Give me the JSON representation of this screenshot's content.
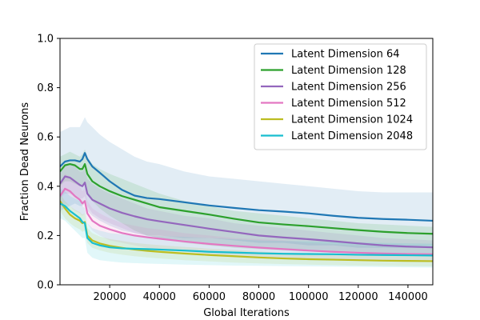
{
  "chart_data": {
    "type": "line",
    "title": "",
    "xlabel": "Global Iterations",
    "ylabel": "Fraction Dead Neurons",
    "xlim": [
      0,
      150000
    ],
    "ylim": [
      0.0,
      1.0
    ],
    "xticks": [
      20000,
      40000,
      60000,
      80000,
      100000,
      120000,
      140000
    ],
    "xtick_labels": [
      "20000",
      "40000",
      "60000",
      "80000",
      "100000",
      "120000",
      "140000"
    ],
    "yticks": [
      0.0,
      0.2,
      0.4,
      0.6,
      0.8,
      1.0
    ],
    "ytick_labels": [
      "0.0",
      "0.2",
      "0.4",
      "0.6",
      "0.8",
      "1.0"
    ],
    "grid": false,
    "legend_position": "top-right",
    "x": [
      0,
      2000,
      4000,
      6000,
      8000,
      9000,
      10000,
      11000,
      13000,
      16000,
      20000,
      25000,
      30000,
      35000,
      40000,
      50000,
      60000,
      70000,
      80000,
      90000,
      100000,
      110000,
      120000,
      130000,
      140000,
      150000
    ],
    "series": [
      {
        "name": "Latent Dimension 64",
        "color": "#1f77b4",
        "values": [
          0.48,
          0.5,
          0.505,
          0.505,
          0.5,
          0.51,
          0.535,
          0.51,
          0.48,
          0.455,
          0.42,
          0.385,
          0.362,
          0.352,
          0.348,
          0.335,
          0.322,
          0.312,
          0.303,
          0.297,
          0.29,
          0.28,
          0.272,
          0.267,
          0.264,
          0.26
        ],
        "lower": [
          0.3,
          0.31,
          0.32,
          0.33,
          0.32,
          0.32,
          0.33,
          0.3,
          0.28,
          0.26,
          0.24,
          0.22,
          0.21,
          0.2,
          0.2,
          0.19,
          0.19,
          0.18,
          0.17,
          0.17,
          0.16,
          0.16,
          0.15,
          0.15,
          0.15,
          0.15
        ],
        "upper": [
          0.62,
          0.63,
          0.64,
          0.64,
          0.64,
          0.66,
          0.68,
          0.66,
          0.64,
          0.61,
          0.58,
          0.55,
          0.52,
          0.5,
          0.49,
          0.46,
          0.44,
          0.43,
          0.42,
          0.41,
          0.4,
          0.39,
          0.38,
          0.375,
          0.375,
          0.375
        ]
      },
      {
        "name": "Latent Dimension 128",
        "color": "#2ca02c",
        "values": [
          0.46,
          0.485,
          0.49,
          0.485,
          0.47,
          0.47,
          0.49,
          0.45,
          0.42,
          0.4,
          0.38,
          0.36,
          0.345,
          0.33,
          0.315,
          0.3,
          0.285,
          0.268,
          0.253,
          0.245,
          0.238,
          0.23,
          0.222,
          0.215,
          0.21,
          0.207
        ],
        "lower": [
          0.4,
          0.42,
          0.42,
          0.41,
          0.4,
          0.4,
          0.41,
          0.37,
          0.34,
          0.31,
          0.28,
          0.25,
          0.22,
          0.2,
          0.19,
          0.17,
          0.16,
          0.15,
          0.145,
          0.14,
          0.135,
          0.13,
          0.13,
          0.125,
          0.125,
          0.125
        ],
        "upper": [
          0.52,
          0.53,
          0.54,
          0.53,
          0.52,
          0.53,
          0.55,
          0.52,
          0.49,
          0.47,
          0.45,
          0.43,
          0.41,
          0.39,
          0.37,
          0.34,
          0.32,
          0.3,
          0.29,
          0.28,
          0.27,
          0.26,
          0.25,
          0.245,
          0.24,
          0.235
        ]
      },
      {
        "name": "Latent Dimension 256",
        "color": "#9467bd",
        "values": [
          0.41,
          0.44,
          0.435,
          0.42,
          0.405,
          0.4,
          0.415,
          0.37,
          0.345,
          0.33,
          0.31,
          0.292,
          0.278,
          0.266,
          0.258,
          0.243,
          0.228,
          0.214,
          0.2,
          0.192,
          0.185,
          0.177,
          0.168,
          0.16,
          0.155,
          0.152
        ],
        "lower": [
          0.35,
          0.37,
          0.37,
          0.36,
          0.35,
          0.35,
          0.36,
          0.32,
          0.29,
          0.27,
          0.25,
          0.23,
          0.21,
          0.2,
          0.19,
          0.18,
          0.17,
          0.16,
          0.15,
          0.145,
          0.14,
          0.135,
          0.13,
          0.125,
          0.125,
          0.12
        ],
        "upper": [
          0.46,
          0.49,
          0.49,
          0.48,
          0.46,
          0.46,
          0.47,
          0.43,
          0.41,
          0.39,
          0.37,
          0.35,
          0.33,
          0.31,
          0.3,
          0.28,
          0.27,
          0.25,
          0.24,
          0.23,
          0.22,
          0.21,
          0.2,
          0.19,
          0.185,
          0.18
        ]
      },
      {
        "name": "Latent Dimension 512",
        "color": "#e377c2",
        "values": [
          0.36,
          0.39,
          0.38,
          0.36,
          0.345,
          0.33,
          0.34,
          0.29,
          0.26,
          0.24,
          0.225,
          0.21,
          0.2,
          0.193,
          0.187,
          0.176,
          0.166,
          0.158,
          0.151,
          0.145,
          0.139,
          0.134,
          0.13,
          0.127,
          0.125,
          0.124
        ],
        "lower": [
          0.31,
          0.33,
          0.32,
          0.3,
          0.29,
          0.28,
          0.29,
          0.25,
          0.22,
          0.2,
          0.18,
          0.17,
          0.16,
          0.15,
          0.145,
          0.135,
          0.125,
          0.12,
          0.115,
          0.11,
          0.108,
          0.105,
          0.1,
          0.1,
          0.098,
          0.096
        ],
        "upper": [
          0.41,
          0.45,
          0.44,
          0.42,
          0.4,
          0.38,
          0.39,
          0.34,
          0.31,
          0.29,
          0.27,
          0.25,
          0.24,
          0.23,
          0.225,
          0.21,
          0.2,
          0.19,
          0.185,
          0.18,
          0.17,
          0.165,
          0.16,
          0.155,
          0.152,
          0.15
        ]
      },
      {
        "name": "Latent Dimension 1024",
        "color": "#bcbd22",
        "values": [
          0.34,
          0.31,
          0.285,
          0.27,
          0.26,
          0.25,
          0.255,
          0.2,
          0.18,
          0.168,
          0.158,
          0.15,
          0.143,
          0.138,
          0.134,
          0.127,
          0.121,
          0.116,
          0.111,
          0.107,
          0.104,
          0.102,
          0.1,
          0.098,
          0.097,
          0.096
        ],
        "lower": [
          0.3,
          0.27,
          0.25,
          0.235,
          0.225,
          0.215,
          0.22,
          0.17,
          0.15,
          0.14,
          0.13,
          0.122,
          0.116,
          0.111,
          0.107,
          0.1,
          0.095,
          0.09,
          0.087,
          0.084,
          0.082,
          0.08,
          0.078,
          0.077,
          0.076,
          0.075
        ],
        "upper": [
          0.37,
          0.34,
          0.32,
          0.305,
          0.295,
          0.285,
          0.29,
          0.23,
          0.21,
          0.196,
          0.186,
          0.178,
          0.17,
          0.165,
          0.161,
          0.154,
          0.147,
          0.142,
          0.135,
          0.13,
          0.126,
          0.124,
          0.122,
          0.12,
          0.118,
          0.117
        ]
      },
      {
        "name": "Latent Dimension 2048",
        "color": "#17becf",
        "values": [
          0.33,
          0.32,
          0.3,
          0.285,
          0.27,
          0.255,
          0.25,
          0.19,
          0.17,
          0.16,
          0.152,
          0.148,
          0.146,
          0.145,
          0.143,
          0.139,
          0.134,
          0.131,
          0.128,
          0.126,
          0.125,
          0.124,
          0.122,
          0.121,
          0.12,
          0.119
        ],
        "lower": [
          0.27,
          0.26,
          0.24,
          0.22,
          0.2,
          0.19,
          0.19,
          0.13,
          0.11,
          0.1,
          0.095,
          0.09,
          0.088,
          0.086,
          0.085,
          0.082,
          0.08,
          0.078,
          0.077,
          0.076,
          0.075,
          0.074,
          0.073,
          0.072,
          0.071,
          0.07
        ],
        "upper": [
          0.39,
          0.38,
          0.36,
          0.35,
          0.34,
          0.32,
          0.31,
          0.25,
          0.23,
          0.22,
          0.21,
          0.205,
          0.2,
          0.2,
          0.198,
          0.194,
          0.19,
          0.185,
          0.18,
          0.178,
          0.176,
          0.174,
          0.172,
          0.17,
          0.168,
          0.167
        ]
      }
    ]
  }
}
